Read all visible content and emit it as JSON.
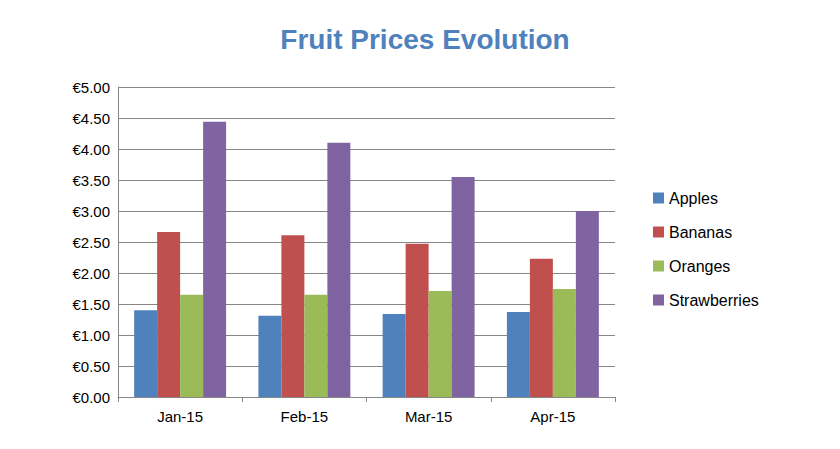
{
  "chart_data": {
    "type": "bar",
    "title": "Fruit Prices Evolution",
    "categories": [
      "Jan-15",
      "Feb-15",
      "Mar-15",
      "Apr-15"
    ],
    "series": [
      {
        "name": "Apples",
        "color": "#4f81bd",
        "values": [
          1.4,
          1.31,
          1.34,
          1.37
        ]
      },
      {
        "name": "Bananas",
        "color": "#c0504d",
        "values": [
          2.66,
          2.61,
          2.47,
          2.23
        ]
      },
      {
        "name": "Oranges",
        "color": "#9bbb59",
        "values": [
          1.65,
          1.65,
          1.71,
          1.74
        ]
      },
      {
        "name": "Strawberries",
        "color": "#8064a2",
        "values": [
          4.44,
          4.1,
          3.55,
          3.0
        ]
      }
    ],
    "ylim": [
      0,
      5
    ],
    "yticks": [
      {
        "value": 0,
        "label": "€0.00"
      },
      {
        "value": 0.5,
        "label": "€0.50"
      },
      {
        "value": 1,
        "label": "€1.00"
      },
      {
        "value": 1.5,
        "label": "€1.50"
      },
      {
        "value": 2,
        "label": "€2.00"
      },
      {
        "value": 2.5,
        "label": "€2.50"
      },
      {
        "value": 3,
        "label": "€3.00"
      },
      {
        "value": 3.5,
        "label": "€3.50"
      },
      {
        "value": 4,
        "label": "€4.00"
      },
      {
        "value": 4.5,
        "label": "€4.50"
      },
      {
        "value": 5,
        "label": "€5.00"
      }
    ],
    "grid": true,
    "legend": "right"
  }
}
